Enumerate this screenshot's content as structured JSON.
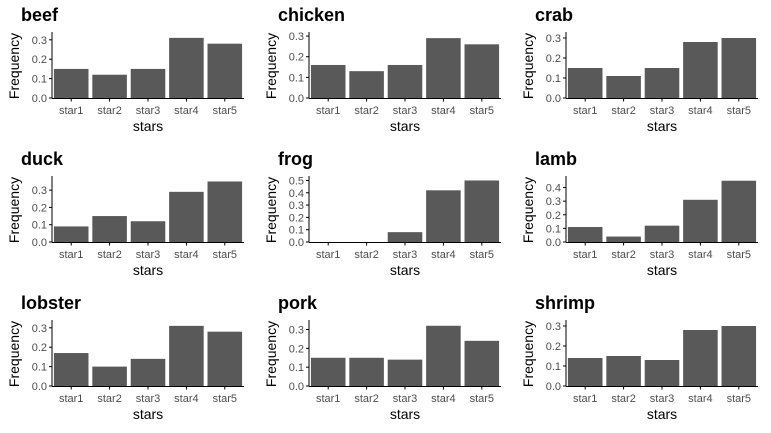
{
  "chart_data": [
    {
      "type": "bar",
      "title": "beef",
      "categories": [
        "star1",
        "star2",
        "star3",
        "star4",
        "star5"
      ],
      "values": [
        0.15,
        0.12,
        0.15,
        0.31,
        0.28
      ],
      "xlabel": "stars",
      "ylabel": "Frequency",
      "ylim": [
        0,
        0.33
      ],
      "yticks": [
        0.0,
        0.1,
        0.2,
        0.3
      ],
      "ytick_labels": [
        "0.0",
        "0.1",
        "0.2",
        "0.3"
      ]
    },
    {
      "type": "bar",
      "title": "chicken",
      "categories": [
        "star1",
        "star2",
        "star3",
        "star4",
        "star5"
      ],
      "values": [
        0.16,
        0.13,
        0.16,
        0.29,
        0.26
      ],
      "xlabel": "stars",
      "ylabel": "Frequency",
      "ylim": [
        0,
        0.31
      ],
      "yticks": [
        0.0,
        0.1,
        0.2,
        0.3
      ],
      "ytick_labels": [
        "0.0",
        "0.1",
        "0.2",
        "0.3"
      ]
    },
    {
      "type": "bar",
      "title": "crab",
      "categories": [
        "star1",
        "star2",
        "star3",
        "star4",
        "star5"
      ],
      "values": [
        0.15,
        0.11,
        0.15,
        0.28,
        0.3
      ],
      "xlabel": "stars",
      "ylabel": "Frequency",
      "ylim": [
        0,
        0.32
      ],
      "yticks": [
        0.0,
        0.1,
        0.2,
        0.3
      ],
      "ytick_labels": [
        "0.0",
        "0.1",
        "0.2",
        "0.3"
      ]
    },
    {
      "type": "bar",
      "title": "duck",
      "categories": [
        "star1",
        "star2",
        "star3",
        "star4",
        "star5"
      ],
      "values": [
        0.09,
        0.15,
        0.12,
        0.29,
        0.35
      ],
      "xlabel": "stars",
      "ylabel": "Frequency",
      "ylim": [
        0,
        0.37
      ],
      "yticks": [
        0.0,
        0.1,
        0.2,
        0.3
      ],
      "ytick_labels": [
        "0.0",
        "0.1",
        "0.2",
        "0.3"
      ]
    },
    {
      "type": "bar",
      "title": "frog",
      "categories": [
        "star1",
        "star2",
        "star3",
        "star4",
        "star5"
      ],
      "values": [
        0.0,
        0.0,
        0.08,
        0.42,
        0.5
      ],
      "xlabel": "stars",
      "ylabel": "Frequency",
      "ylim": [
        0,
        0.52
      ],
      "yticks": [
        0.0,
        0.1,
        0.2,
        0.3,
        0.4,
        0.5
      ],
      "ytick_labels": [
        "0.0",
        "0.1",
        "0.2",
        "0.3",
        "0.4",
        "0.5"
      ]
    },
    {
      "type": "bar",
      "title": "lamb",
      "categories": [
        "star1",
        "star2",
        "star3",
        "star4",
        "star5"
      ],
      "values": [
        0.11,
        0.04,
        0.12,
        0.31,
        0.45
      ],
      "xlabel": "stars",
      "ylabel": "Frequency",
      "ylim": [
        0,
        0.47
      ],
      "yticks": [
        0.0,
        0.1,
        0.2,
        0.3,
        0.4
      ],
      "ytick_labels": [
        "0.0",
        "0.1",
        "0.2",
        "0.3",
        "0.4"
      ]
    },
    {
      "type": "bar",
      "title": "lobster",
      "categories": [
        "star1",
        "star2",
        "star3",
        "star4",
        "star5"
      ],
      "values": [
        0.17,
        0.1,
        0.14,
        0.31,
        0.28
      ],
      "xlabel": "stars",
      "ylabel": "Frequency",
      "ylim": [
        0,
        0.33
      ],
      "yticks": [
        0.0,
        0.1,
        0.2,
        0.3
      ],
      "ytick_labels": [
        "0.0",
        "0.1",
        "0.2",
        "0.3"
      ]
    },
    {
      "type": "bar",
      "title": "pork",
      "categories": [
        "star1",
        "star2",
        "star3",
        "star4",
        "star5"
      ],
      "values": [
        0.15,
        0.15,
        0.14,
        0.32,
        0.24
      ],
      "xlabel": "stars",
      "ylabel": "Frequency",
      "ylim": [
        0,
        0.34
      ],
      "yticks": [
        0.0,
        0.1,
        0.2,
        0.3
      ],
      "ytick_labels": [
        "0.0",
        "0.1",
        "0.2",
        "0.3"
      ]
    },
    {
      "type": "bar",
      "title": "shrimp",
      "categories": [
        "star1",
        "star2",
        "star3",
        "star4",
        "star5"
      ],
      "values": [
        0.14,
        0.15,
        0.13,
        0.28,
        0.3
      ],
      "xlabel": "stars",
      "ylabel": "Frequency",
      "ylim": [
        0,
        0.32
      ],
      "yticks": [
        0.0,
        0.1,
        0.2,
        0.3
      ],
      "ytick_labels": [
        "0.0",
        "0.1",
        "0.2",
        "0.3"
      ]
    }
  ],
  "colors": {
    "bar": "#595959",
    "axis": "#000000",
    "tick_text": "#4d4d4d",
    "background": "#ffffff"
  }
}
